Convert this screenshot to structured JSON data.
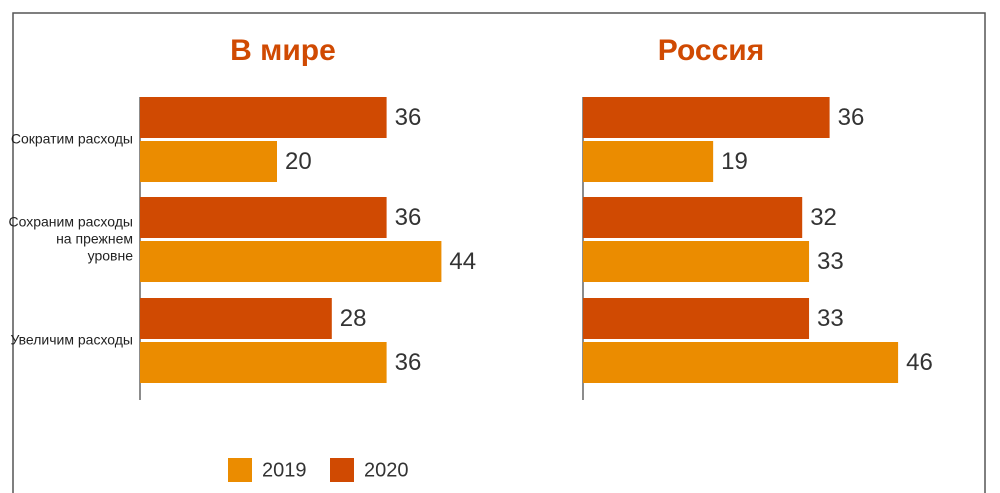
{
  "chart_data": [
    {
      "type": "bar",
      "orientation": "horizontal",
      "title": "В мире",
      "categories": [
        "Сократим расходы",
        "Сохраним расходы на прежнем уровне",
        "Увеличим расходы"
      ],
      "series": [
        {
          "name": "2020",
          "color": "#d04a02",
          "values": [
            36,
            36,
            28
          ]
        },
        {
          "name": "2019",
          "color": "#eb8c00",
          "values": [
            20,
            44,
            36
          ]
        }
      ]
    },
    {
      "type": "bar",
      "orientation": "horizontal",
      "title": "Россия",
      "series": [
        {
          "name": "2020",
          "color": "#d04a02",
          "values": [
            36,
            32,
            33
          ]
        },
        {
          "name": "2019",
          "color": "#eb8c00",
          "values": [
            19,
            33,
            46
          ]
        }
      ]
    }
  ]
}
